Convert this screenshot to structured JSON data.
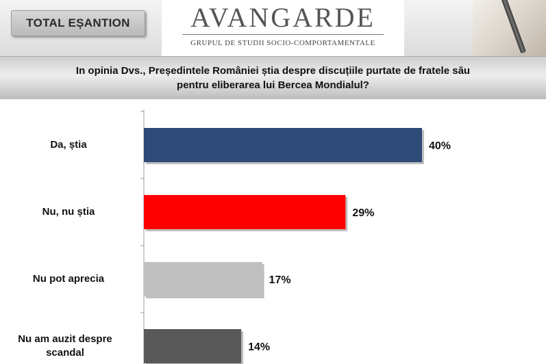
{
  "header": {
    "badge_label": "TOTAL EȘANTION",
    "logo_text": "AVANGARDE",
    "logo_subtitle": "GRUPUL DE STUDII SOCIO-COMPORTAMENTALE"
  },
  "question": {
    "line1": "In opinia Dvs., Președintele României știa despre discuțiile purtate de fratele său",
    "line2": "pentru eliberarea lui Bercea Mondialul?"
  },
  "chart_data": {
    "type": "bar",
    "orientation": "horizontal",
    "categories": [
      "Da, știa",
      "Nu, nu știa",
      "Nu pot aprecia",
      "Nu am auzit despre scandal"
    ],
    "values": [
      40,
      29,
      17,
      14
    ],
    "value_labels": [
      "40%",
      "29%",
      "17%",
      "14%"
    ],
    "colors": [
      "#2e4a78",
      "#ff0000",
      "#c0c0c0",
      "#595959"
    ],
    "xlim": [
      0,
      50
    ],
    "grid": false,
    "legend": "none"
  }
}
